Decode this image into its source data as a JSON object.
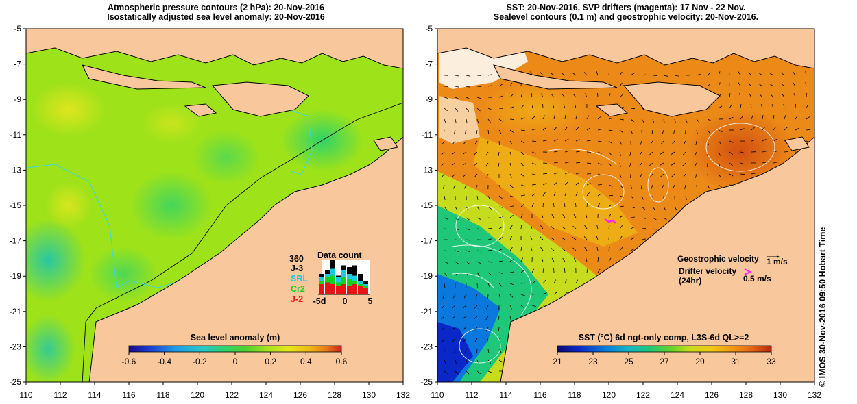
{
  "left": {
    "title_line1": "Atmospheric pressure contours (2 hPa): 20-Nov-2016",
    "title_line2": "Isostatically adjusted sea level anomaly: 20-Nov-2016",
    "colorbar_title": "Sea level anomaly (m)",
    "colorbar_ticks": [
      "-0.6",
      "-0.4",
      "-0.2",
      "0",
      "0.2",
      "0.4",
      "0.6"
    ],
    "colorbar_colors": [
      "#1a0a8c",
      "#1c3fd2",
      "#1e9be6",
      "#28c8c8",
      "#2ed36a",
      "#4fd12e",
      "#a3e21e",
      "#e6e61e",
      "#f0b814",
      "#e8781a",
      "#c8281a"
    ],
    "data_count": {
      "title": "Data count",
      "max_label": "360",
      "missions": [
        {
          "name": "J-3",
          "color": "#000000"
        },
        {
          "name": "SRL",
          "color": "#1ec8e6"
        },
        {
          "name": "Cr2",
          "color": "#16d21e"
        },
        {
          "name": "J-2",
          "color": "#e61414"
        }
      ],
      "x_ticks": [
        "-5d",
        "0",
        "5"
      ],
      "bars": [
        {
          "j3": 0.6,
          "srl": 0.5,
          "cr2": 0.4,
          "j2": 0.3
        },
        {
          "j3": 0.7,
          "srl": 0.6,
          "cr2": 0.5,
          "j2": 0.35
        },
        {
          "j3": 1.0,
          "srl": 0.75,
          "cr2": 0.55,
          "j2": 0.3
        },
        {
          "j3": 0.55,
          "srl": 0.5,
          "cr2": 0.35,
          "j2": 0.25
        },
        {
          "j3": 0.85,
          "srl": 0.7,
          "cr2": 0.5,
          "j2": 0.3
        },
        {
          "j3": 0.8,
          "srl": 0.6,
          "cr2": 0.45,
          "j2": 0.25
        },
        {
          "j3": 0.85,
          "srl": 0.55,
          "cr2": 0.4,
          "j2": 0.3
        },
        {
          "j3": 0.6,
          "srl": 0.4,
          "cr2": 0.3,
          "j2": 0.25
        },
        {
          "j3": 0.4,
          "srl": 0.3,
          "cr2": 0.25,
          "j2": 0.2
        }
      ]
    }
  },
  "right": {
    "title_line1": "SST: 20-Nov-2016. SVP drifters (magenta): 17 Nov - 22 Nov.",
    "title_line2": "Sealevel contours (0.1 m) and geostrophic velocity: 20-Nov-2016.",
    "colorbar_title": "SST (°C) 6d ngt-only comp, L3S-6d QL>=2",
    "colorbar_ticks": [
      "21",
      "23",
      "25",
      "27",
      "29",
      "31",
      "33"
    ],
    "colorbar_colors": [
      "#0a0a78",
      "#0a28c8",
      "#0a78dc",
      "#14b4c8",
      "#1ec878",
      "#64d228",
      "#c8dc1e",
      "#f0c814",
      "#f09614",
      "#e66414",
      "#b4280a"
    ],
    "geostrophic_label": "Geostrophic velocity",
    "geostrophic_scale": "1 m/s",
    "drifter_label_line1": "Drifter velocity",
    "drifter_label_line2": "(24hr)",
    "drifter_scale": "0.5 m/s",
    "drifter_color": "#ff22ff"
  },
  "axes": {
    "x_ticks": [
      "110",
      "112",
      "114",
      "116",
      "118",
      "120",
      "122",
      "124",
      "126",
      "128",
      "130",
      "132"
    ],
    "y_ticks": [
      "-5",
      "-7",
      "-9",
      "-11",
      "-13",
      "-15",
      "-17",
      "-19",
      "-21",
      "-23",
      "-25"
    ]
  },
  "credit": "© IMOS 30-Nov-2016 09:50 Hobart Time",
  "colors": {
    "land": "#f8c79b",
    "left_sea": "#9ee21a",
    "right_sea": "#ec8a18"
  }
}
